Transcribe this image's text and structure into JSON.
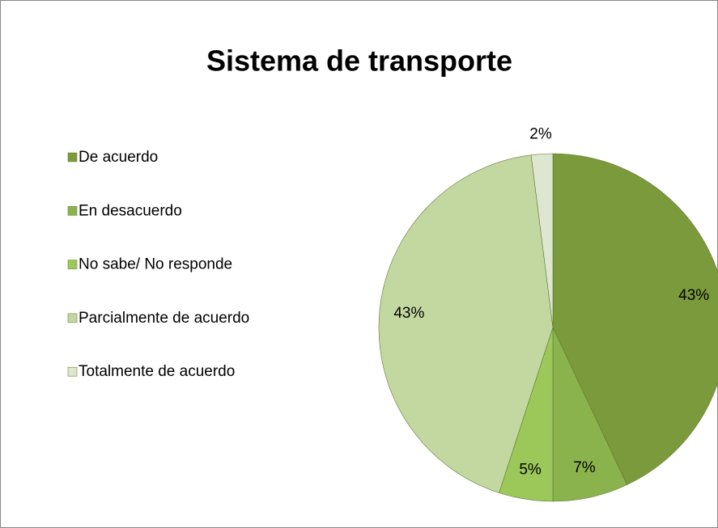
{
  "chart_data": {
    "type": "pie",
    "title": "Sistema de  transporte",
    "categories": [
      "De acuerdo",
      "En desacuerdo",
      "No sabe/ No responde",
      "Parcialmente de acuerdo",
      "Totalmente de acuerdo"
    ],
    "values": [
      43,
      7,
      5,
      43,
      2
    ],
    "value_labels": [
      "43%",
      "7%",
      "5%",
      "43%",
      "2%"
    ],
    "colors": [
      "#7b9a3c",
      "#8bb34d",
      "#9cc85a",
      "#c3d8a0",
      "#dde6d0"
    ],
    "legend": "left"
  }
}
